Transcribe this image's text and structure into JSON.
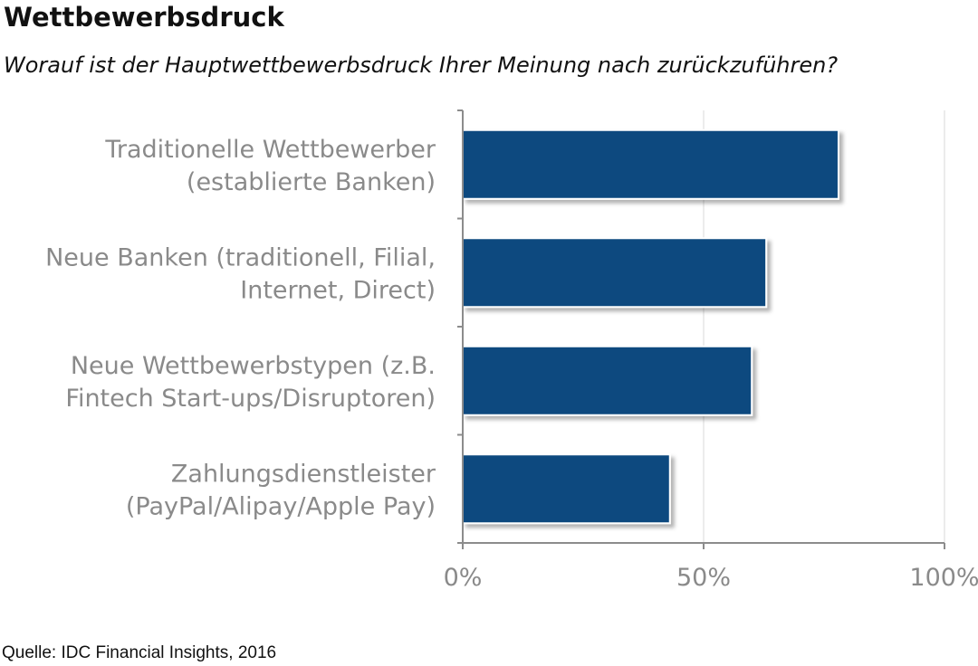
{
  "chart_data": {
    "type": "bar",
    "orientation": "horizontal",
    "title": "Wettbewerbsdruck",
    "subtitle": "Worauf ist der Hauptwettbewerbsdruck Ihrer Meinung nach zurückzuführen?",
    "categories": [
      [
        "Traditionelle Wettbewerber",
        "(establierte Banken)"
      ],
      [
        "Neue Banken (traditionell, Filial,",
        "Internet, Direct)"
      ],
      [
        "Neue Wettbewerbstypen (z.B.",
        "Fintech Start-ups/Disruptoren)"
      ],
      [
        "Zahlungsdienstleister",
        "(PayPal/Alipay/Apple Pay)"
      ]
    ],
    "values": [
      78,
      63,
      60,
      43
    ],
    "xlim": [
      0,
      100
    ],
    "x_ticks": [
      0,
      50,
      100
    ],
    "x_tick_labels": [
      "0%",
      "50%",
      "100%"
    ],
    "grid": true,
    "bar_color": "#0c4a7f",
    "source": "Quelle: IDC Financial Insights, 2016"
  }
}
